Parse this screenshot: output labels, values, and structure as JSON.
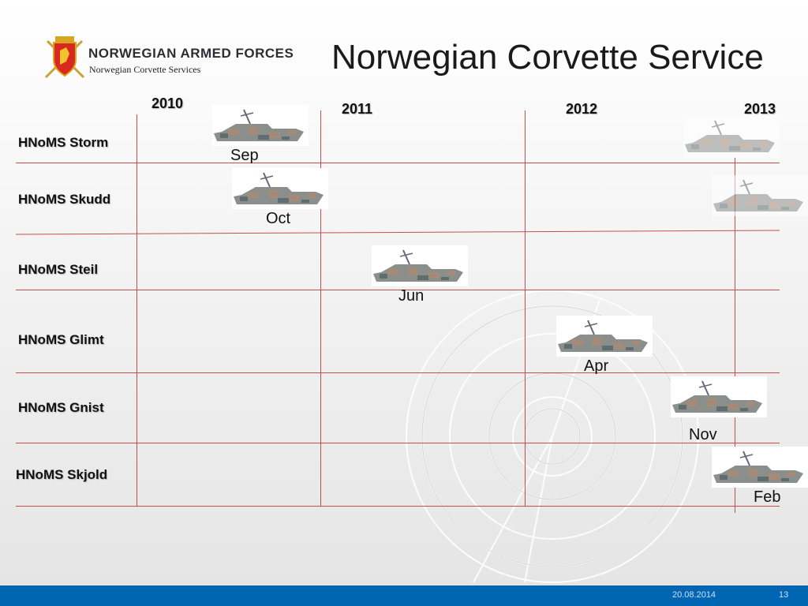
{
  "header": {
    "title": "Norwegian Corvette Service",
    "brand": "NORWEGIAN ARMED FORCES",
    "subtitle": "Norwegian Corvette Services"
  },
  "years": [
    "2010",
    "2011",
    "2012",
    "2013"
  ],
  "ships": [
    {
      "name": "HNoMS Storm",
      "month": "Sep"
    },
    {
      "name": "HNoMS Skudd",
      "month": "Oct"
    },
    {
      "name": "HNoMS Steil",
      "month": "Jun"
    },
    {
      "name": "HNoMS Glimt",
      "month": "Apr"
    },
    {
      "name": "HNoMS Gnist",
      "month": "Nov"
    },
    {
      "name": "HNoMS Skjold",
      "month": "Feb"
    }
  ],
  "footer": {
    "date": "20.08.2014",
    "page": "13"
  },
  "colors": {
    "grid": "#c0504d",
    "footer": "#0066b3"
  }
}
